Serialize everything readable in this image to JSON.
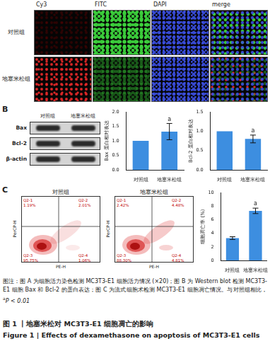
{
  "panel_a": {
    "columns": [
      "Cy3",
      "FITC",
      "DAPI",
      "merge"
    ],
    "rows": [
      "对照组",
      "地塞米松组"
    ]
  },
  "panel_b": {
    "label": "B",
    "blot": {
      "rows": [
        "Bax",
        "Bcl-2",
        "β-actin"
      ],
      "columns": [
        "对照组",
        "地塞米松组"
      ]
    }
  },
  "panel_c": {
    "label": "C",
    "flow_plots": [
      {
        "title": "对照组",
        "x_label": "PE-H",
        "y_label": "PerCP-H",
        "quadrants": [
          {
            "name": "Q2-1",
            "text": "1.19%"
          },
          {
            "name": "Q2-2",
            "text": "2.01%"
          },
          {
            "name": "Q2-3",
            "text": "95.75%"
          },
          {
            "name": "Q2-4",
            "text": "1.06%"
          }
        ]
      },
      {
        "title": "地塞米松组",
        "x_label": "PE-H",
        "y_label": "PerCP-H",
        "quadrants": [
          {
            "name": "Q2-1",
            "text": "2.42%"
          },
          {
            "name": "Q2-2",
            "text": "4.48%"
          },
          {
            "name": "Q2-3",
            "text": "88.30%"
          },
          {
            "name": "Q2-4",
            "text": "4.81%"
          }
        ]
      }
    ]
  },
  "chart_data": [
    {
      "type": "bar",
      "y_label": "Bax 蛋白相对表达",
      "categories": [
        "对照组",
        "地塞米松组"
      ],
      "values": [
        1,
        1.32
      ],
      "errors": [
        null,
        0.28
      ],
      "color": "#3d8ee0",
      "ylim": [
        0,
        2
      ],
      "yticks": [
        {
          "value": 0,
          "label": "0.0"
        },
        {
          "value": 0.5,
          "label": "0.5"
        },
        {
          "value": 1,
          "label": "1.0"
        },
        {
          "value": 1.5,
          "label": "1.5"
        },
        {
          "value": 2,
          "label": "2.0"
        }
      ],
      "grid": false,
      "annotations": [
        {
          "category": "地塞米松组",
          "text": "a"
        }
      ]
    },
    {
      "type": "bar",
      "y_label": "Bcl-2 蛋白相对表达",
      "categories": [
        "对照组",
        "地塞米松组"
      ],
      "values": [
        1,
        0.8
      ],
      "errors": [
        null,
        0.1
      ],
      "color": "#3d8ee0",
      "ylim": [
        0,
        1.5
      ],
      "yticks": [
        {
          "value": 0,
          "label": "0.0"
        },
        {
          "value": 0.5,
          "label": "0.5"
        },
        {
          "value": 1,
          "label": "1.0"
        },
        {
          "value": 1.5,
          "label": "1.5"
        }
      ],
      "grid": false,
      "annotations": [
        {
          "category": "地塞米松组",
          "text": "a"
        }
      ]
    },
    {
      "type": "bar",
      "y_label": "细胞凋亡率 (%)",
      "categories": [
        "对照组",
        "地塞米松组"
      ],
      "values": [
        3.3,
        7.3
      ],
      "errors": [
        0.2,
        0.4
      ],
      "color": "#3d8ee0",
      "ylim": [
        0,
        10
      ],
      "yticks": [
        0,
        2,
        4,
        6,
        8,
        10
      ],
      "grid": false,
      "annotations": [
        {
          "category": "地塞米松组",
          "text": "a"
        }
      ]
    }
  ],
  "caption": {
    "text": "图注：图 A 为细胞活力染色检测 MC3T3-E1 细胞活力情况 (×20)；图 B 为 Western blot 检测 MC3T3-E1 细胞 Bax 和 Bcl-2 的蛋白表达；图 C 为流式细胞术检测 MC3T3-E1 细胞凋亡情况。与对照组相比，",
    "superscript": "a",
    "after": "P < 0.01"
  },
  "title": "图 1 丨地塞米松对 MC3T3-E1 细胞凋亡的影响",
  "title_en": "Figure 1 | Effects of dexamethasone on apoptosis of MC3T3-E1 cells"
}
